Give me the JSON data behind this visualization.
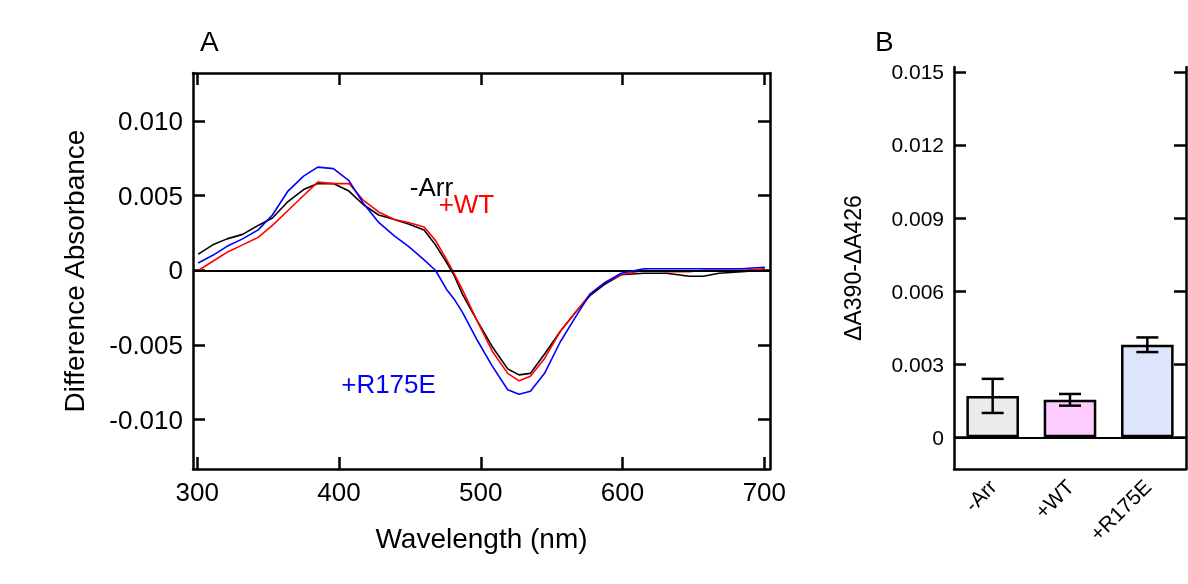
{
  "chart_data": [
    {
      "type": "line",
      "title": "A",
      "xlabel": "Wavelength (nm)",
      "ylabel": "Difference Absorbance",
      "marker": "none",
      "line_style": "solid",
      "x": [
        301,
        311,
        321,
        332,
        343,
        353,
        364,
        375,
        385,
        396,
        407,
        417,
        428,
        439,
        449,
        460,
        468,
        476,
        481,
        487,
        497,
        508,
        519,
        527,
        535,
        545,
        556,
        567,
        577,
        588,
        599,
        615,
        631,
        647,
        657,
        668,
        684,
        700
      ],
      "xlim": [
        297,
        704
      ],
      "xticks": [
        300,
        400,
        500,
        600,
        700
      ],
      "ylim": [
        -0.0133,
        0.0132
      ],
      "yticks": [
        {
          "value": -0.01,
          "label": "-0.010"
        },
        -0.005,
        0,
        0.005,
        {
          "value": 0.01,
          "label": "0.010"
        }
      ],
      "ref_lines": [
        {
          "axis": "y",
          "value": 0,
          "color": "#000000"
        }
      ],
      "series": [
        {
          "name": "-Arr",
          "color": "#000000",
          "values": [
            0.0011,
            0.0017,
            0.0021,
            0.0024,
            0.003,
            0.0035,
            0.0046,
            0.0054,
            0.0058,
            0.0058,
            0.0053,
            0.0044,
            0.0037,
            0.0034,
            0.0031,
            0.0027,
            0.0017,
            0.0005,
            -0.0003,
            -0.0016,
            -0.0033,
            -0.0051,
            -0.0066,
            -0.007,
            -0.0069,
            -0.0056,
            -0.0041,
            -0.0028,
            -0.0017,
            -0.0009,
            -0.0003,
            -0.0002,
            -0.0002,
            -0.0004,
            -0.0004,
            -0.0002,
            -0.0001,
            0
          ]
        },
        {
          "name": "+WT",
          "color": "#ff0000",
          "values": [
            0,
            0.0006,
            0.0012,
            0.0017,
            0.0022,
            0.003,
            0.004,
            0.005,
            0.0059,
            0.0058,
            0.0058,
            0.0047,
            0.0039,
            0.0034,
            0.0032,
            0.0029,
            0.002,
            0.0007,
            -0.0002,
            -0.0013,
            -0.0033,
            -0.0054,
            -0.0069,
            -0.0074,
            -0.0071,
            -0.0059,
            -0.0041,
            -0.0028,
            -0.0016,
            -0.0008,
            -0.0003,
            0,
            -0.0001,
            -0.0001,
            0,
            0,
            0,
            0.0001
          ]
        },
        {
          "name": "+R175E",
          "color": "#0000ff",
          "values": [
            0.0005,
            0.001,
            0.0016,
            0.0021,
            0.0027,
            0.0037,
            0.0053,
            0.0063,
            0.0069,
            0.0068,
            0.006,
            0.0045,
            0.0032,
            0.0023,
            0.0016,
            0.0007,
            0,
            -0.0013,
            -0.0019,
            -0.0028,
            -0.0046,
            -0.0064,
            -0.008,
            -0.0083,
            -0.0081,
            -0.0069,
            -0.0048,
            -0.0031,
            -0.0016,
            -0.0008,
            -0.0002,
            0.0001,
            0.0001,
            0.0001,
            0.0001,
            0.0001,
            0.0001,
            0.0002
          ]
        }
      ]
    },
    {
      "type": "bar",
      "title": "B",
      "ylabel": "ΔA390-ΔA426",
      "categories": [
        "-Arr",
        "+WT",
        "+R175E"
      ],
      "values": [
        0.0017,
        0.00154,
        0.0038
      ],
      "colors": [
        "#ebebeb",
        "#ffccff",
        "#dde4fb"
      ],
      "errors": [
        0.0007,
        0.00024,
        0.0003
      ],
      "ylim": [
        -0.0013,
        0.0152
      ],
      "yticks": [
        0,
        0.003,
        0.006,
        0.009,
        0.012,
        0.015
      ],
      "ref_lines": [
        {
          "axis": "y",
          "value": 0,
          "color": "#000000"
        }
      ]
    }
  ]
}
